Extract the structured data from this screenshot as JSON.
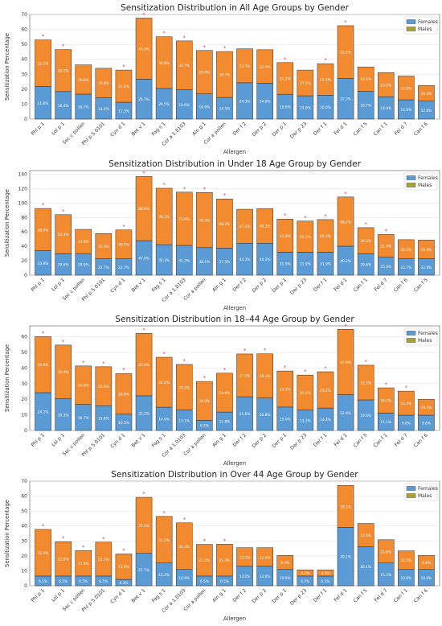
{
  "legend": {
    "females": "Females",
    "males": "Males"
  },
  "colors": {
    "females": "#5b9bd5",
    "males": "#f28b30",
    "legend_males": "#a9a134",
    "grid": "#e6e6e6",
    "axis": "#555555",
    "star": "#d04a6a"
  },
  "chart_data": [
    {
      "type": "bar",
      "title": "Sensitization Distribution in All Age Groups by Gender",
      "xlabel": "Allergen",
      "ylabel": "Sensitization Percentage",
      "ylim": [
        0,
        70
      ],
      "yticks": [
        0,
        10,
        20,
        30,
        40,
        50,
        60,
        70
      ],
      "categories": [
        "Phl p 1",
        "Lol p 1",
        "Sec c pollen",
        "Phl p 5.0101",
        "Cyn d 1",
        "Bet v 1",
        "Fag s 1",
        "Cor a 1.0103",
        "Aln g 1",
        "Cor a pollen",
        "Der f 2",
        "Der p 2",
        "Der p 1",
        "Der p 23",
        "Der f 1",
        "Fel d 1",
        "Can f 5",
        "Can f 1",
        "Fel d 7",
        "Can f 6"
      ],
      "series": [
        {
          "name": "Females",
          "values": [
            21.8,
            18.4,
            16.7,
            14.2,
            11.3,
            26.7,
            20.5,
            19.6,
            16.9,
            14.5,
            24.3,
            24.0,
            16.6,
            15.6,
            16.0,
            27.3,
            18.7,
            14.9,
            12.9,
            12.0
          ]
        },
        {
          "name": "Males",
          "values": [
            31.2,
            28.1,
            19.6,
            19.8,
            21.5,
            40.9,
            34.6,
            32.7,
            29.0,
            30.7,
            22.7,
            22.4,
            21.2,
            17.2,
            21.1,
            35.2,
            16.2,
            16.2,
            15.9,
            10.5
          ]
        }
      ],
      "female_labels": [
        "21.8%",
        "18.4%",
        "16.7%",
        "14.2%",
        "11.3%",
        "26.7%",
        "20.5%",
        "19.6%",
        "16.9%",
        "14.5%",
        "24.3%",
        "24.0%",
        "16.6%",
        "15.6%",
        "16.0%",
        "27.3%",
        "18.7%",
        "14.9%",
        "12.9%",
        "12.0%"
      ],
      "male_labels": [
        "31.2%",
        "28.1%",
        "19.6%",
        "19.8%",
        "21.5%",
        "40.9%",
        "34.6%",
        "32.7%",
        "29.0%",
        "30.7%",
        "22.7%",
        "22.4%",
        "21.2%",
        "17.2%",
        "21.1%",
        "35.2%",
        "16.2%",
        "16.2%",
        "15.9%",
        "10.5%"
      ],
      "significant": [
        true,
        true,
        false,
        false,
        true,
        true,
        true,
        true,
        true,
        true,
        false,
        false,
        true,
        false,
        true,
        true,
        false,
        false,
        false,
        false
      ],
      "star_labels": [
        "*",
        "*",
        "",
        "",
        "*",
        "*",
        "*",
        "*",
        "*",
        "*",
        "",
        "",
        "*",
        "",
        "*",
        "*",
        "",
        "",
        "",
        ""
      ],
      "legend_position": "top-right"
    },
    {
      "type": "bar",
      "title": "Sensitization Distribution in Under 18 Age Group by Gender",
      "xlabel": "Allergen",
      "ylabel": "Sensitization Percentage",
      "ylim": [
        0,
        145
      ],
      "yticks": [
        0,
        20,
        40,
        60,
        80,
        100,
        120,
        140
      ],
      "categories": [
        "Phl p 1",
        "Lol p 1",
        "Sec c pollen",
        "Phl p 5.0101",
        "Cyn d 1",
        "Bet v 1",
        "Fag s 1",
        "Cor a 1.0103",
        "Cor a pollen",
        "Aln g 1",
        "Der f 2",
        "Der p 2",
        "Der p 1",
        "Der p 23",
        "Der f 1",
        "Fel d 1",
        "Can f 1",
        "Fel d 7",
        "Can f 6",
        "Can f 5"
      ],
      "series": [
        {
          "name": "Females",
          "values": [
            33.9,
            29.6,
            29.9,
            22.7,
            22.7,
            47.9,
            42.3,
            41.3,
            38.1,
            37.5,
            44.3,
            44.3,
            31.9,
            31.9,
            31.9,
            40.2,
            29.6,
            25.0,
            22.7,
            22.8
          ]
        },
        {
          "name": "Males",
          "values": [
            58.6,
            54.3,
            33.6,
            35.0,
            40.0,
            88.9,
            78.2,
            73.8,
            76.5,
            68.2,
            47.1,
            48.1,
            45.9,
            43.1,
            45.2,
            68.2,
            36.3,
            31.4,
            26.5,
            25.9
          ]
        }
      ],
      "female_labels": [
        "33.9%",
        "29.6%",
        "29.9%",
        "22.7%",
        "22.7%",
        "47.9%",
        "42.3%",
        "41.3%",
        "38.1%",
        "37.5%",
        "44.3%",
        "44.3%",
        "31.9%",
        "31.9%",
        "31.9%",
        "40.2%",
        "29.6%",
        "25.0%",
        "22.7%",
        "22.8%"
      ],
      "male_labels": [
        "58.6%",
        "54.3%",
        "33.6%",
        "35.0%",
        "40.0%",
        "88.9%",
        "78.2%",
        "73.8%",
        "76.5%",
        "68.2%",
        "47.1%",
        "48.1%",
        "45.9%",
        "43.1%",
        "45.2%",
        "68.2%",
        "36.3%",
        "31.4%",
        "26.5%",
        "25.9%"
      ],
      "significant": [
        true,
        true,
        false,
        false,
        true,
        true,
        true,
        true,
        true,
        true,
        false,
        false,
        true,
        true,
        true,
        true,
        true,
        true,
        false,
        false
      ],
      "star_labels": [
        "*",
        "*",
        "",
        "",
        "*",
        "*",
        "*",
        "*",
        "*",
        "*",
        "",
        "",
        "*",
        "*",
        "*",
        "*",
        "*",
        "*",
        "",
        ""
      ],
      "legend_position": "top-right"
    },
    {
      "type": "bar",
      "title": "Sensitization Distribution in 18–44 Age Group by Gender",
      "xlabel": "Allergen",
      "ylabel": "Sensitization Percentage",
      "ylim": [
        0,
        67
      ],
      "yticks": [
        0,
        10,
        20,
        30,
        40,
        50,
        60
      ],
      "categories": [
        "Phl p 1",
        "Lol p 1",
        "Sec c pollen",
        "Phl p 5.0101",
        "Cyn d 1",
        "Bet v 1",
        "Fag s 1",
        "Cor a 1.0103",
        "Cor a pollen",
        "Aln g 1",
        "Der f 2",
        "Der p 2",
        "Der p 1",
        "Der p 23",
        "Der f 1",
        "Fel d 1",
        "Can f 5",
        "Can f 1",
        "Fel d 7",
        "Can f 6"
      ],
      "series": [
        {
          "name": "Females",
          "values": [
            24.2,
            20.3,
            16.7,
            15.8,
            10.5,
            22.2,
            14.9,
            13.1,
            6.5,
            11.8,
            21.6,
            20.8,
            15.0,
            13.1,
            14.4,
            22.9,
            19.6,
            11.1,
            9.8,
            9.8
          ]
        },
        {
          "name": "Males",
          "values": [
            35.9,
            34.4,
            24.6,
            25.0,
            26.0,
            40.0,
            32.0,
            29.2,
            24.9,
            24.9,
            27.4,
            28.3,
            23.1,
            22.4,
            23.2,
            41.9,
            22.2,
            16.2,
            15.4,
            10.2
          ]
        }
      ],
      "female_labels": [
        "24.2%",
        "20.3%",
        "16.7%",
        "15.8%",
        "10.5%",
        "22.2%",
        "14.9%",
        "13.1%",
        "6.5%",
        "11.8%",
        "21.6%",
        "20.8%",
        "15.0%",
        "13.1%",
        "14.4%",
        "22.9%",
        "19.6%",
        "11.1%",
        "9.8%",
        "9.8%"
      ],
      "male_labels": [
        "35.9%",
        "34.4%",
        "24.6%",
        "25.0%",
        "26.0%",
        "40.0%",
        "32.0%",
        "29.2%",
        "24.9%",
        "24.9%",
        "27.4%",
        "28.3%",
        "23.1%",
        "22.4%",
        "23.2%",
        "41.9%",
        "22.2%",
        "16.2%",
        "15.4%",
        "10.2%"
      ],
      "significant": [
        true,
        true,
        true,
        true,
        true,
        true,
        true,
        true,
        true,
        true,
        true,
        true,
        true,
        true,
        true,
        true,
        true,
        true,
        true,
        false
      ],
      "star_labels": [
        "*",
        "*",
        "*",
        "*",
        "*",
        "*",
        "*",
        "*",
        "*",
        "*",
        "*",
        "*",
        "*",
        "*",
        "*",
        "*",
        "*",
        "*",
        "*",
        ""
      ],
      "legend_position": "top-right"
    },
    {
      "type": "bar",
      "title": "Sensitization Distribution in Over 44 Age Group by Gender",
      "xlabel": "Allergen",
      "ylabel": "Sensitization Percentage",
      "ylim": [
        0,
        70
      ],
      "yticks": [
        0,
        10,
        20,
        30,
        40,
        50,
        60,
        70
      ],
      "categories": [
        "Phl p 1",
        "Lol p 1",
        "Sec c pollen",
        "Phl p 5.0101",
        "Cyn d 1",
        "Bet v 1",
        "Fag s 1",
        "Cor a 1.0103",
        "Cor a pollen",
        "Aln g 1",
        "Der f 2",
        "Der p 2",
        "Der p 1",
        "Der p 23",
        "Der f 1",
        "Fel d 1",
        "Can f 5",
        "Fel d 7",
        "Can f 1",
        "Can f 6"
      ],
      "series": [
        {
          "name": "Females",
          "values": [
            6.5,
            6.5,
            6.5,
            6.5,
            4.3,
            21.7,
            15.2,
            10.9,
            6.5,
            6.5,
            13.0,
            13.0,
            10.9,
            6.5,
            6.5,
            39.1,
            26.1,
            15.2,
            10.9,
            10.9
          ]
        },
        {
          "name": "Males",
          "values": [
            31.2,
            23.0,
            17.0,
            22.7,
            17.0,
            37.5,
            31.2,
            31.2,
            21.2,
            21.3,
            12.5,
            12.5,
            9.4,
            4.1,
            4.1,
            28.1,
            15.6,
            15.6,
            12.5,
            9.4
          ]
        }
      ],
      "female_labels": [
        "6.5%",
        "6.5%",
        "6.5%",
        "6.5%",
        "4.3%",
        "21.7%",
        "15.2%",
        "10.9%",
        "6.5%",
        "6.5%",
        "13.0%",
        "13.0%",
        "10.9%",
        "6.5%",
        "6.5%",
        "39.1%",
        "26.1%",
        "15.2%",
        "10.9%",
        "10.9%"
      ],
      "male_labels": [
        "31.2%",
        "23.0%",
        "17.0%",
        "22.7%",
        "17.0%",
        "37.5%",
        "31.2%",
        "31.2%",
        "21.2%",
        "21.3%",
        "12.5%",
        "12.5%",
        "9.4%",
        "4.1%",
        "4.1%",
        "28.1%",
        "15.6%",
        "15.6%",
        "12.5%",
        "9.4%"
      ],
      "significant": [
        true,
        true,
        true,
        true,
        true,
        true,
        true,
        true,
        true,
        true,
        false,
        false,
        false,
        false,
        false,
        false,
        false,
        false,
        false,
        false
      ],
      "star_labels": [
        "*",
        "*",
        "*",
        "*",
        "*",
        "*",
        "*",
        "*",
        "*",
        "*",
        "",
        "",
        "",
        "",
        "",
        "",
        "",
        "",
        "",
        ""
      ],
      "legend_position": "top-right"
    }
  ]
}
